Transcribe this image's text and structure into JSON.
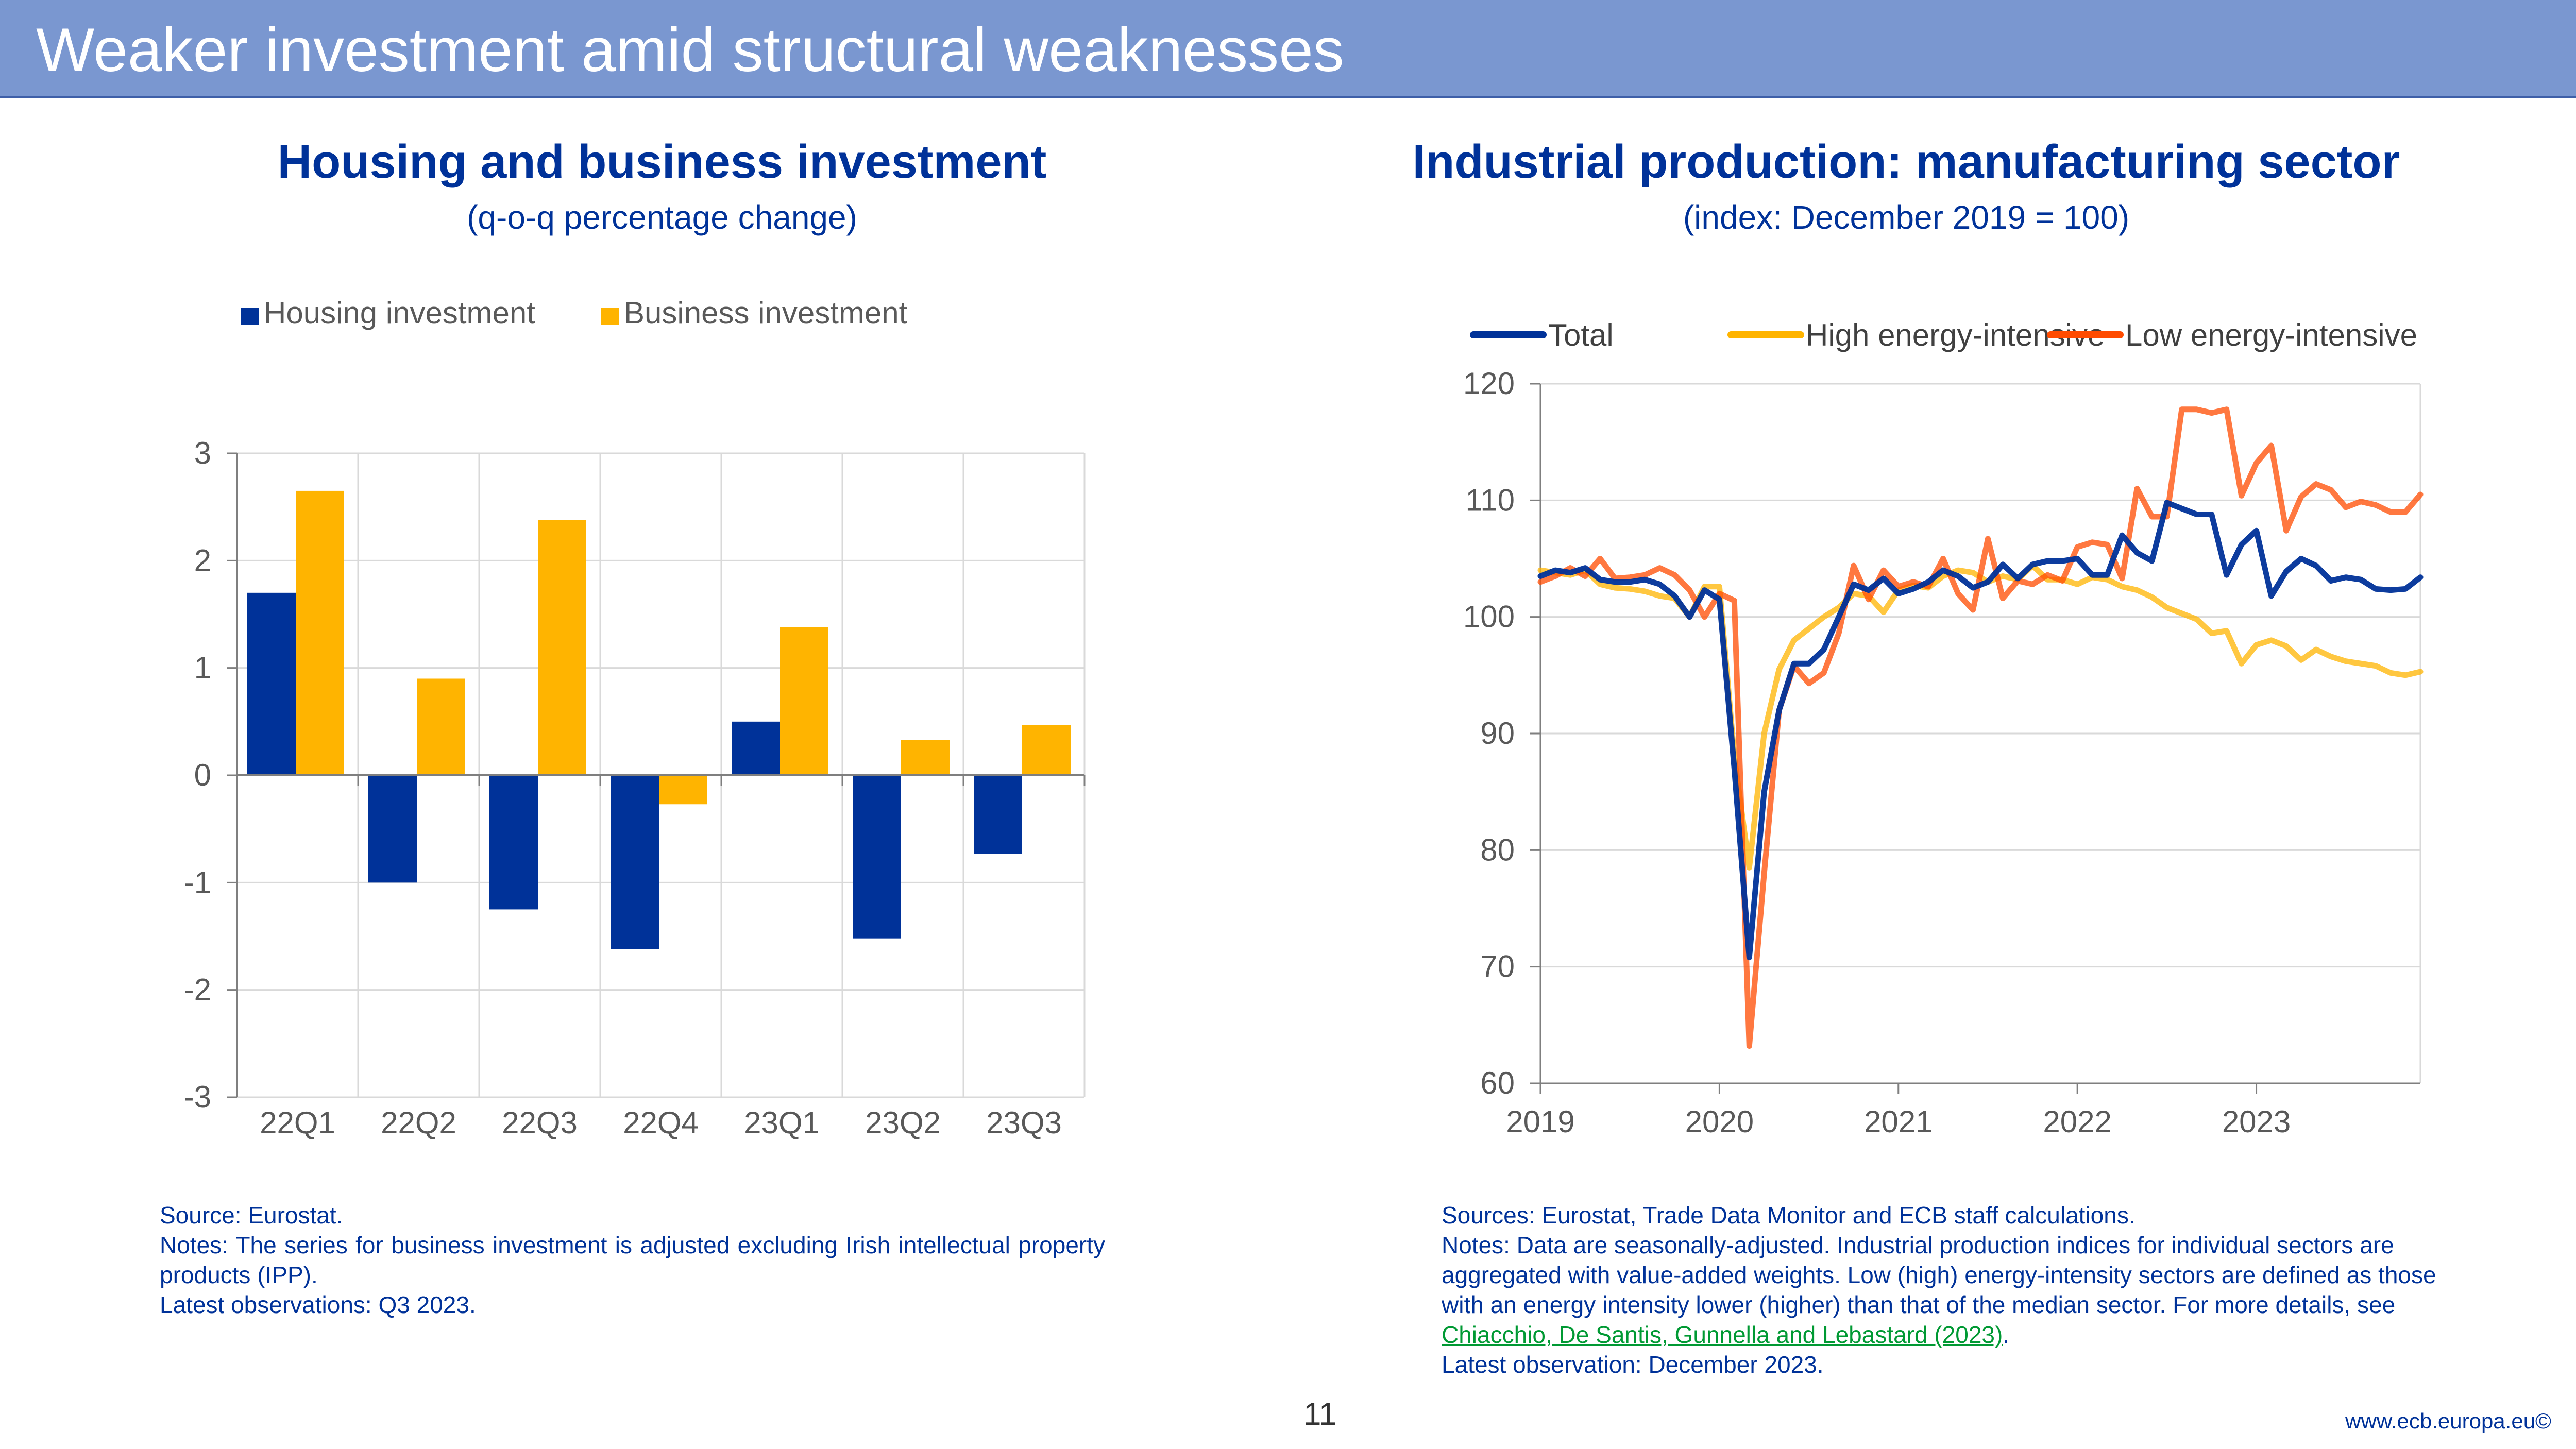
{
  "header": {
    "title": "Weaker investment amid structural weaknesses"
  },
  "left_panel": {
    "title": "Housing and business investment",
    "subtitle": "(q-o-q percentage change)",
    "notes": {
      "source": "Source: Eurostat.",
      "notes": "Notes: The series for business investment is adjusted excluding Irish intellectual property products (IPP).",
      "latest": "Latest observations: Q3 2023."
    }
  },
  "right_panel": {
    "title": "Industrial production: manufacturing sector",
    "subtitle": "(index: December 2019 = 100)",
    "notes": {
      "source": "Sources: Eurostat, Trade Data Monitor and ECB staff calculations.",
      "notes_text": "Notes: Data are seasonally-adjusted. Industrial production indices for individual sectors are aggregated with value-added weights. Low (high) energy-intensity sectors are defined as those with an energy intensity lower (higher) than that of the median sector. For more details, see",
      "link_text": "Chiacchio, De Santis, Gunnella and Lebastard (2023)",
      "after_link": ".",
      "latest": "Latest observation: December 2023."
    }
  },
  "footer": {
    "page_number": "11",
    "url": "www.ecb.europa.eu©"
  },
  "chart_data": [
    {
      "type": "bar",
      "categories": [
        "22Q1",
        "22Q2",
        "22Q3",
        "22Q4",
        "23Q1",
        "23Q2",
        "23Q3"
      ],
      "series": [
        {
          "name": "Housing investment",
          "color": "#003299",
          "values": [
            1.7,
            -1.0,
            -1.25,
            -1.62,
            0.5,
            -1.52,
            -0.73
          ]
        },
        {
          "name": "Business investment",
          "color": "#FFB400",
          "values": [
            2.65,
            0.9,
            2.38,
            -0.27,
            1.38,
            0.33,
            0.47
          ]
        }
      ],
      "ylim": [
        -3,
        3
      ],
      "yticks": [
        "3",
        "2",
        "1",
        "0",
        "-1",
        "-2",
        "-3"
      ],
      "legend_position": "top-left",
      "grid": true
    },
    {
      "type": "line",
      "x_start": "2019-01",
      "x_end": "2023-12",
      "xticks": [
        "2019",
        "2020",
        "2021",
        "2022",
        "2023"
      ],
      "ylim": [
        60,
        120
      ],
      "yticks": [
        "120",
        "110",
        "100",
        "90",
        "80",
        "70",
        "60"
      ],
      "legend_position": "top",
      "grid": true,
      "series": [
        {
          "name": "Total",
          "color": "#003299",
          "values": [
            103.5,
            104,
            103.8,
            104.2,
            103.2,
            103,
            103,
            103.2,
            102.8,
            101.8,
            100,
            102.3,
            101.5,
            87,
            70.8,
            85,
            92,
            96,
            96,
            97.2,
            100,
            102.8,
            102.3,
            103.3,
            102,
            102.4,
            103,
            104,
            103.5,
            102.5,
            103,
            104.5,
            103.3,
            104.5,
            104.8,
            104.8,
            105,
            103.6,
            103.6,
            107,
            105.5,
            104.8,
            109.8,
            109.3,
            108.8,
            108.8,
            103.6,
            106.2,
            107.4,
            101.8,
            103.9,
            105,
            104.4,
            103.1,
            103.4,
            103.2,
            102.4,
            102.3,
            102.4,
            103.4
          ]
        },
        {
          "name": "High energy-intensive",
          "color": "#FFB400",
          "values": [
            104,
            103.8,
            103.6,
            104,
            102.8,
            102.5,
            102.4,
            102.2,
            101.8,
            101.6,
            100,
            102.6,
            102.6,
            88,
            78.5,
            90,
            95.5,
            98,
            99,
            100,
            100.8,
            102,
            101.8,
            100.4,
            102.3,
            102.7,
            102.5,
            103.5,
            104,
            103.8,
            103,
            103.5,
            103.2,
            104.4,
            103.2,
            103.2,
            102.8,
            103.4,
            103.2,
            102.6,
            102.3,
            101.7,
            100.8,
            100.3,
            99.8,
            98.6,
            98.8,
            96,
            97.6,
            98,
            97.5,
            96.3,
            97.2,
            96.6,
            96.2,
            96,
            95.8,
            95.2,
            95,
            95.3
          ]
        },
        {
          "name": "Low energy-intensive",
          "color": "#FF4B00",
          "values": [
            103,
            103.5,
            104.2,
            103.5,
            105,
            103.3,
            103.4,
            103.6,
            104.2,
            103.6,
            102.3,
            100,
            102,
            101.4,
            63.2,
            78,
            92,
            95.8,
            94.3,
            95.2,
            98.6,
            104.4,
            101.5,
            104,
            102.6,
            103,
            102.6,
            105,
            102,
            100.6,
            106.7,
            101.6,
            103.1,
            102.8,
            103.6,
            103.1,
            106,
            106.4,
            106.2,
            103.3,
            111,
            108.6,
            108.6,
            117.8,
            117.8,
            117.5,
            117.8,
            110.4,
            113.2,
            114.7,
            107.4,
            110.3,
            111.4,
            110.9,
            109.4,
            109.9,
            109.6,
            109,
            109,
            110.5
          ]
        }
      ]
    }
  ]
}
